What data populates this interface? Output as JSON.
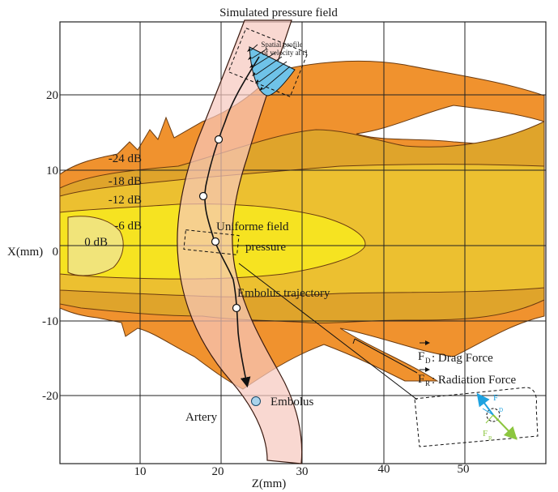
{
  "title": "Simulated pressure field",
  "axes": {
    "xlabel": "Z(mm)",
    "ylabel": "X(mm)",
    "x_ticks": [
      "10",
      "20",
      "30",
      "40",
      "50"
    ],
    "y_ticks": [
      "20",
      "10",
      "0",
      "-10",
      "-20"
    ]
  },
  "contours": [
    {
      "label": "-24 dB",
      "color": "#f0922e"
    },
    {
      "label": "-18 dB",
      "color": "#dfa42b"
    },
    {
      "label": "-12 dB",
      "color": "#ecc030"
    },
    {
      "label": "-6 dB",
      "color": "#f6e321"
    },
    {
      "label": "0 dB",
      "color": "#f1e47a"
    }
  ],
  "annotations": {
    "velocity_profile_line1": "Spatial profile",
    "velocity_profile_line2": "of velocity at t1",
    "uniform_field_line1": "Uniforme field",
    "uniform_field_line2": "pressure",
    "embolus_trajectory": "Embolus trajectory",
    "artery": "Artery",
    "embolus": "Embolus"
  },
  "legend": {
    "drag_symbol": "F",
    "drag_sub": "D",
    "drag_text": ": Drag Force",
    "radiation_symbol": "F",
    "radiation_sub": "R",
    "radiation_text": ": Radiation Force"
  },
  "inset": {
    "drag_symbol": "F",
    "drag_sub": "D",
    "radiation_symbol": "F",
    "radiation_sub": "R"
  },
  "colors": {
    "artery": "#f7c7bd",
    "velocity_profile": "#6fc3e8",
    "embolus": "#a9d3ec",
    "drag_arrow": "#1ea2e0",
    "radiation_arrow": "#8cc63f"
  }
}
